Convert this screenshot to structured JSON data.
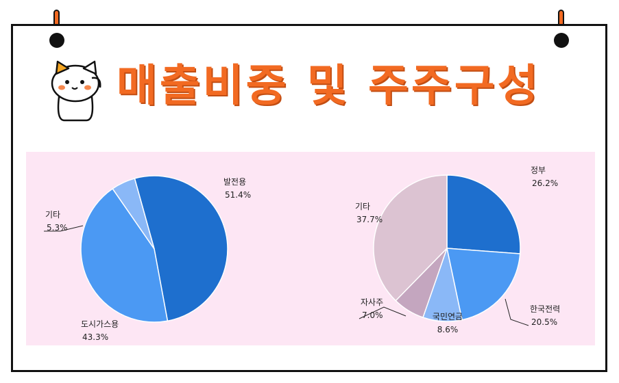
{
  "title": "매출비중 및 주주구성",
  "colors": {
    "accent": "#f26a22",
    "panel": "#fde6f4"
  },
  "chart_data": [
    {
      "type": "pie",
      "categories": [
        "발전용",
        "도시가스용",
        "기타"
      ],
      "values": [
        51.4,
        43.3,
        5.3
      ],
      "labels": [
        "51.4%",
        "43.3%",
        "5.3%"
      ],
      "colors": [
        "#1e6fce",
        "#4b99f3",
        "#8ab8f7"
      ]
    },
    {
      "type": "pie",
      "categories": [
        "정부",
        "한국전력",
        "국민연금",
        "자사주",
        "기타"
      ],
      "values": [
        26.2,
        20.5,
        8.6,
        7.0,
        37.7
      ],
      "labels": [
        "26.2%",
        "20.5%",
        "8.6%",
        "7.0%",
        "37.7%"
      ],
      "colors": [
        "#1e6fce",
        "#4b99f3",
        "#8ab8f7",
        "#c4a6bf",
        "#dcc3d2"
      ]
    }
  ]
}
